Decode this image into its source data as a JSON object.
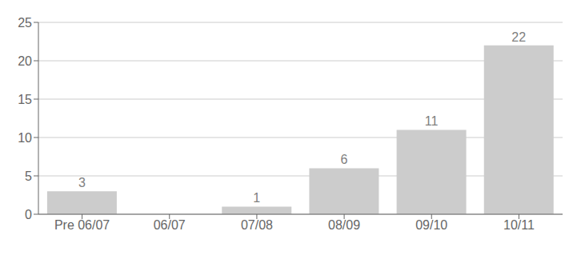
{
  "chart_data": {
    "type": "bar",
    "categories": [
      "Pre 06/07",
      "06/07",
      "07/08",
      "08/09",
      "09/10",
      "10/11"
    ],
    "values": [
      3,
      0,
      1,
      6,
      11,
      22
    ],
    "color": "#cccccc",
    "ylim": [
      0,
      25
    ],
    "yticks": [
      0,
      5,
      10,
      15,
      20,
      25
    ],
    "grid": true,
    "data_labels": true
  }
}
